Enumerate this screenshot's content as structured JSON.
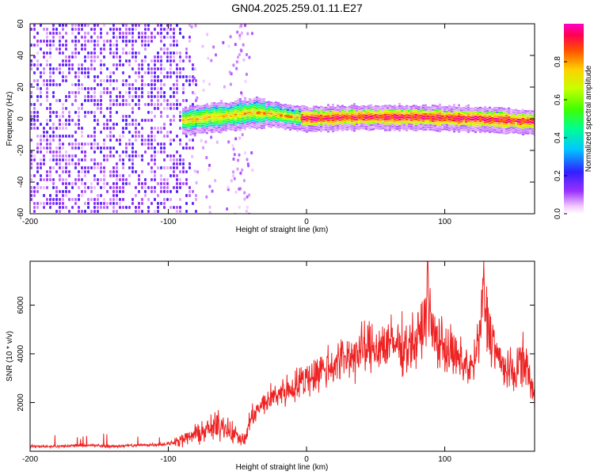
{
  "figure": {
    "title": "GN04.2025.259.01.11.E27"
  },
  "chart_data": [
    {
      "type": "heatmap",
      "title": "GN04.2025.259.01.11.E27",
      "xlabel": "Height of straight line (km)",
      "ylabel": "Frequency (Hz)",
      "xlim": [
        -200,
        165
      ],
      "ylim": [
        -60,
        60
      ],
      "x_ticks": [
        -200,
        -100,
        0,
        100
      ],
      "x_tick_labels": [
        "-200",
        "-100",
        "0",
        "100"
      ],
      "y_ticks": [
        -60,
        -40,
        -20,
        0,
        20,
        40,
        60
      ],
      "y_tick_labels": [
        "-60",
        "-40",
        "-20",
        "0",
        "20",
        "40",
        "60"
      ],
      "colorbar": {
        "label": "Normalized spectral amplitude",
        "range": [
          0,
          1
        ],
        "ticks": [
          0.0,
          0.2,
          0.4,
          0.6,
          0.8
        ],
        "tick_labels": [
          "0.0",
          "0.2",
          "0.4",
          "0.6",
          "0.8"
        ]
      },
      "features": {
        "noise_region_x": [
          -200,
          -85
        ],
        "signal_band_start_x": -90,
        "signal_band_freq_center": 0,
        "secondary_column_x": -48,
        "band_center_freq_points": [
          [
            -90,
            -1
          ],
          [
            -70,
            1
          ],
          [
            -55,
            2
          ],
          [
            -40,
            4
          ],
          [
            -25,
            3
          ],
          [
            -10,
            1
          ],
          [
            0,
            0
          ],
          [
            40,
            1
          ],
          [
            80,
            1
          ],
          [
            120,
            0
          ],
          [
            165,
            -2
          ]
        ]
      }
    },
    {
      "type": "line",
      "xlabel": "Height of straight line (km)",
      "ylabel": "SNR (10 * v/v)",
      "xlim": [
        -200,
        165
      ],
      "ylim": [
        0,
        7800
      ],
      "x_ticks": [
        -200,
        -100,
        0,
        100
      ],
      "x_tick_labels": [
        "-200",
        "-100",
        "0",
        "100"
      ],
      "y_ticks": [
        2000,
        4000,
        6000
      ],
      "y_tick_labels": [
        "2000",
        "4000",
        "6000"
      ],
      "series": [
        {
          "name": "SNR",
          "color": "#ee2222",
          "x": [
            -200,
            -180,
            -160,
            -140,
            -120,
            -100,
            -90,
            -80,
            -70,
            -60,
            -50,
            -45,
            -40,
            -30,
            -20,
            -10,
            0,
            10,
            20,
            30,
            40,
            50,
            60,
            70,
            80,
            85,
            88,
            90,
            100,
            110,
            120,
            125,
            128,
            130,
            140,
            150,
            155,
            160,
            165
          ],
          "values": [
            200,
            200,
            250,
            200,
            250,
            300,
            450,
            700,
            900,
            1100,
            600,
            400,
            1400,
            2000,
            2400,
            2600,
            3000,
            3300,
            3600,
            3900,
            4100,
            4300,
            4400,
            4300,
            4500,
            5200,
            7000,
            4900,
            4300,
            3700,
            3400,
            4500,
            6800,
            5500,
            3600,
            3100,
            3800,
            3400,
            2100
          ]
        }
      ]
    }
  ]
}
